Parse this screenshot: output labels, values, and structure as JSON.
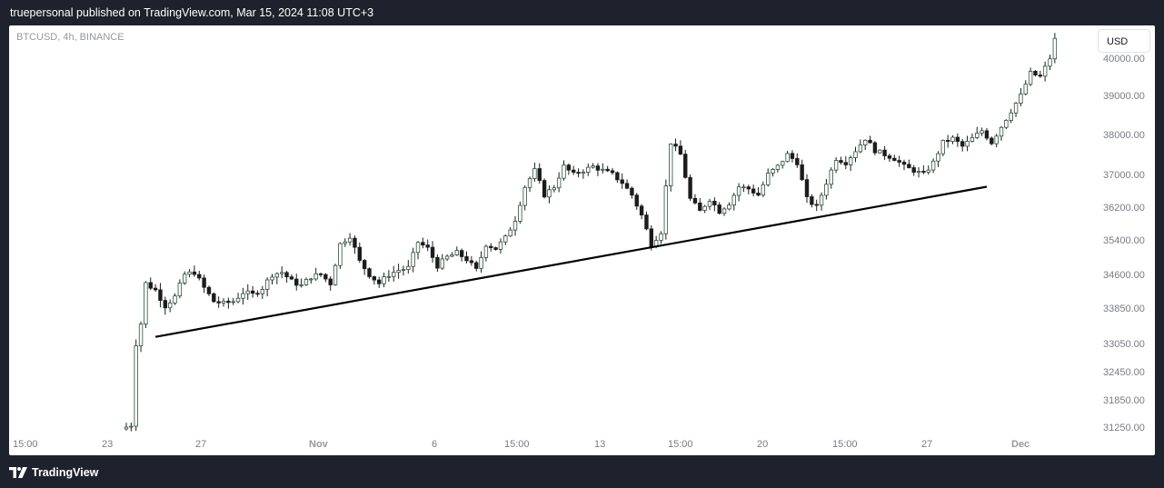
{
  "header": {
    "publish_text": "truepersonal published on TradingView.com, Mar 15, 2024 11:08 UTC+3"
  },
  "chart": {
    "symbol_label": "BTCUSD, 4h, BINANCE",
    "currency_label": "USD"
  },
  "footer": {
    "brand": "TradingView"
  },
  "colors": {
    "candle_up": "#2d4f3a",
    "candle_down": "#1c1c1c",
    "trendline": "#000000",
    "axis_text": "#787b86",
    "x_label_strong": "#9598a1",
    "background": "#1e222d"
  },
  "chart_data": {
    "type": "candlestick",
    "title": "",
    "xlabel": "",
    "ylabel": "",
    "ylim": [
      31000,
      40600
    ],
    "y_ticks": [
      "40000.00",
      "39000.00",
      "38000.00",
      "37000.00",
      "36200.00",
      "35400.00",
      "34600.00",
      "33850.00",
      "33050.00",
      "32450.00",
      "31850.00",
      "31250.00"
    ],
    "x_ticks": [
      "15:00",
      "23",
      "27",
      "Nov",
      "6",
      "15:00",
      "13",
      "15:00",
      "20",
      "15:00",
      "27",
      "Dec"
    ],
    "x_tick_strong": [
      false,
      false,
      false,
      true,
      false,
      false,
      false,
      false,
      false,
      false,
      false,
      true
    ],
    "close_path": [
      [
        0,
        31250
      ],
      [
        1,
        31300
      ],
      [
        2,
        33050
      ],
      [
        3,
        33500
      ],
      [
        4,
        34400
      ],
      [
        6,
        34250
      ],
      [
        8,
        33900
      ],
      [
        10,
        34100
      ],
      [
        12,
        34600
      ],
      [
        14,
        34650
      ],
      [
        16,
        34300
      ],
      [
        18,
        34000
      ],
      [
        20,
        33950
      ],
      [
        22,
        34000
      ],
      [
        24,
        34200
      ],
      [
        26,
        34150
      ],
      [
        28,
        34300
      ],
      [
        30,
        34600
      ],
      [
        32,
        34650
      ],
      [
        34,
        34450
      ],
      [
        36,
        34350
      ],
      [
        38,
        34550
      ],
      [
        40,
        34600
      ],
      [
        42,
        34400
      ],
      [
        44,
        35300
      ],
      [
        46,
        35500
      ],
      [
        48,
        34900
      ],
      [
        50,
        34600
      ],
      [
        52,
        34400
      ],
      [
        54,
        34600
      ],
      [
        56,
        34700
      ],
      [
        58,
        34750
      ],
      [
        60,
        35350
      ],
      [
        62,
        35200
      ],
      [
        64,
        34800
      ],
      [
        66,
        35000
      ],
      [
        68,
        35100
      ],
      [
        70,
        34950
      ],
      [
        72,
        34700
      ],
      [
        74,
        35300
      ],
      [
        76,
        35200
      ],
      [
        78,
        35450
      ],
      [
        80,
        35900
      ],
      [
        82,
        36700
      ],
      [
        84,
        37100
      ],
      [
        86,
        36500
      ],
      [
        88,
        36700
      ],
      [
        90,
        37200
      ],
      [
        92,
        37000
      ],
      [
        94,
        37100
      ],
      [
        96,
        37200
      ],
      [
        98,
        37100
      ],
      [
        100,
        37000
      ],
      [
        102,
        36800
      ],
      [
        104,
        36500
      ],
      [
        106,
        36000
      ],
      [
        108,
        35300
      ],
      [
        110,
        35600
      ],
      [
        112,
        37800
      ],
      [
        114,
        37500
      ],
      [
        116,
        36400
      ],
      [
        118,
        36100
      ],
      [
        120,
        36400
      ],
      [
        122,
        36100
      ],
      [
        124,
        36300
      ],
      [
        126,
        36700
      ],
      [
        128,
        36650
      ],
      [
        130,
        36500
      ],
      [
        132,
        37000
      ],
      [
        134,
        37200
      ],
      [
        136,
        37500
      ],
      [
        138,
        37300
      ],
      [
        140,
        36400
      ],
      [
        142,
        36200
      ],
      [
        144,
        36800
      ],
      [
        146,
        37400
      ],
      [
        148,
        37300
      ],
      [
        150,
        37600
      ],
      [
        152,
        37900
      ],
      [
        154,
        37600
      ],
      [
        156,
        37500
      ],
      [
        158,
        37400
      ],
      [
        160,
        37200
      ],
      [
        162,
        37100
      ],
      [
        164,
        37000
      ],
      [
        166,
        37300
      ],
      [
        168,
        37800
      ],
      [
        170,
        37900
      ],
      [
        172,
        37700
      ],
      [
        174,
        37900
      ],
      [
        176,
        38100
      ],
      [
        178,
        37800
      ],
      [
        180,
        38200
      ],
      [
        182,
        38600
      ],
      [
        184,
        39000
      ],
      [
        186,
        39600
      ],
      [
        188,
        39500
      ],
      [
        190,
        40000
      ],
      [
        191,
        40500
      ]
    ],
    "trendline": {
      "start": {
        "bar": 6,
        "price": 33200
      },
      "end": {
        "bar": 177,
        "price": 36700
      }
    }
  }
}
